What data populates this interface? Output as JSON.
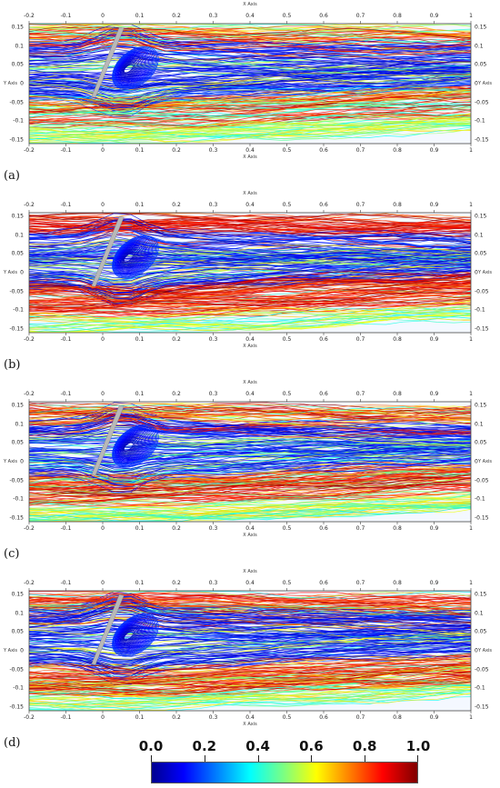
{
  "figure": {
    "panels": [
      {
        "letter": "(a)",
        "hot": 0.55
      },
      {
        "letter": "(b)",
        "hot": 0.95
      },
      {
        "letter": "(c)",
        "hot": 0.85
      },
      {
        "letter": "(d)",
        "hot": 0.7
      }
    ],
    "axis": {
      "x_title": "X Axis",
      "y_title": "Y Axis",
      "x_ticks": [
        "-0.2",
        "-0.1",
        "0",
        "0.1",
        "0.2",
        "0.3",
        "0.4",
        "0.5",
        "0.6",
        "0.7",
        "0.8",
        "0.9",
        "1"
      ],
      "y_ticks": [
        "0.15",
        "0.1",
        "0.05",
        "0",
        "-0.05",
        "-0.1",
        "-0.15"
      ]
    },
    "colorbar": {
      "labels": [
        "0.0",
        "0.2",
        "0.4",
        "0.6",
        "0.8",
        "1.0"
      ],
      "colors": [
        "#0000b0",
        "#0050ff",
        "#00d0ff",
        "#40ff90",
        "#f0ff00",
        "#ff8000",
        "#d00000",
        "#800000"
      ]
    }
  }
}
